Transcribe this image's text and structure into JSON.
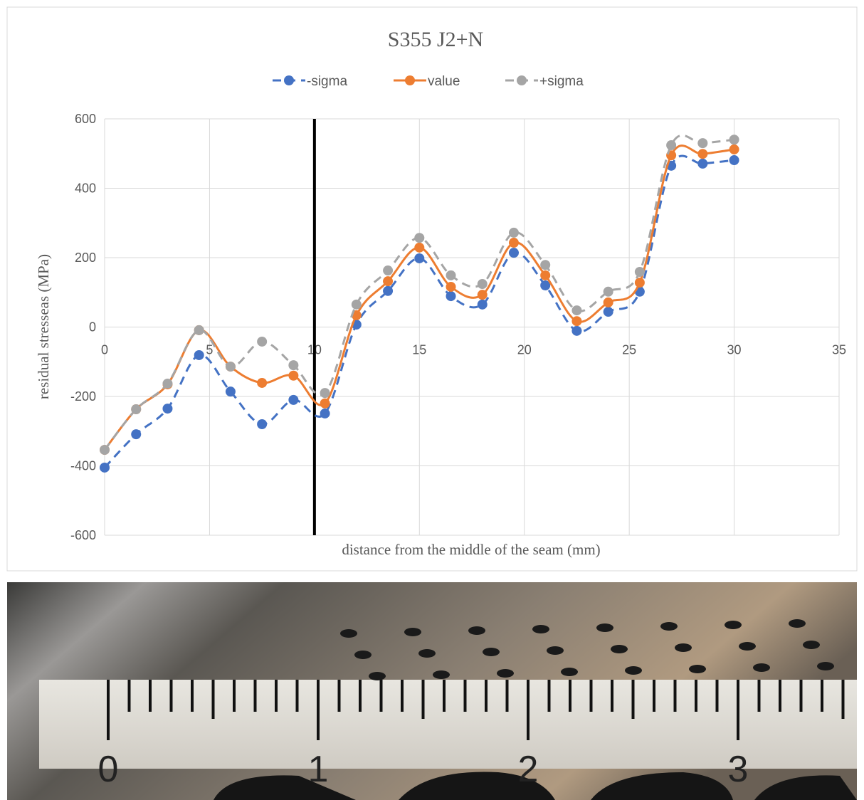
{
  "chart_data": {
    "type": "line",
    "title": "S355 J2+N",
    "xlabel": "distance from the middle of the seam (mm)",
    "ylabel": "residual stresseas (MPa)",
    "x": [
      0,
      1.5,
      3,
      4.5,
      6,
      7.5,
      9,
      10.5,
      12,
      13.5,
      15,
      16.5,
      18,
      19.5,
      21,
      22.5,
      24,
      25.5,
      27,
      28.5,
      30
    ],
    "series": [
      {
        "name": "-sigma",
        "color": "#4472c4",
        "dashed": true,
        "values": [
          -405,
          -309,
          -235,
          -81,
          -186,
          -280,
          -210,
          -249,
          7,
          104,
          198,
          89,
          65,
          214,
          120,
          -11,
          44,
          102,
          465,
          471,
          481
        ]
      },
      {
        "name": "value",
        "color": "#ed7d31",
        "dashed": false,
        "values": [
          -354,
          -237,
          -165,
          -9,
          -114,
          -161,
          -140,
          -220,
          34,
          132,
          229,
          116,
          93,
          243,
          149,
          17,
          71,
          128,
          495,
          499,
          512
        ]
      },
      {
        "name": "+sigma",
        "color": "#a5a5a5",
        "dashed": true,
        "values": [
          -354,
          -237,
          -163,
          -9,
          -114,
          -42,
          -110,
          -190,
          65,
          163,
          257,
          149,
          124,
          272,
          179,
          48,
          102,
          159,
          524,
          530,
          540
        ]
      }
    ],
    "xlim": [
      0,
      35
    ],
    "xticks": [
      0,
      5,
      10,
      15,
      20,
      25,
      30,
      35
    ],
    "ylim": [
      -600,
      600
    ],
    "yticks": [
      -600,
      -400,
      -200,
      0,
      200,
      400,
      600
    ],
    "grid": true,
    "legend": "top",
    "smooth": true,
    "vline_x": 10
  },
  "photo": {
    "ruler_labels": [
      "0",
      "1",
      "2",
      "3"
    ]
  }
}
